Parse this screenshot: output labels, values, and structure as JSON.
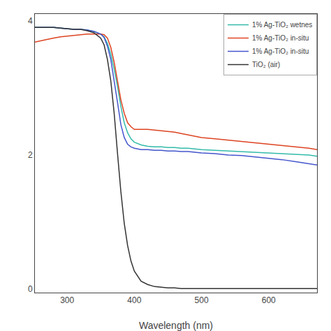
{
  "chart_data": {
    "type": "line",
    "xlabel": "Wavelength (nm)",
    "xlim": [
      252,
      672
    ],
    "ylim": [
      -0.05,
      4.1
    ],
    "xticks": [
      300,
      400,
      500,
      600
    ],
    "yticks": [
      0,
      2,
      4
    ],
    "grid": false,
    "legend": "upper right",
    "x": [
      252,
      260,
      270,
      280,
      290,
      300,
      310,
      320,
      330,
      340,
      350,
      355,
      360,
      365,
      370,
      375,
      380,
      385,
      390,
      395,
      400,
      410,
      420,
      430,
      440,
      450,
      460,
      470,
      480,
      490,
      500,
      520,
      540,
      560,
      580,
      600,
      620,
      640,
      660,
      672
    ],
    "series": [
      {
        "name": "1% Ag-TiO₂ wetnes",
        "color": "#33bbaa",
        "values": [
          3.9,
          3.9,
          3.9,
          3.9,
          3.89,
          3.88,
          3.87,
          3.87,
          3.86,
          3.84,
          3.8,
          3.76,
          3.66,
          3.5,
          3.28,
          3.02,
          2.72,
          2.48,
          2.33,
          2.24,
          2.19,
          2.15,
          2.13,
          2.12,
          2.12,
          2.11,
          2.11,
          2.1,
          2.1,
          2.09,
          2.08,
          2.07,
          2.06,
          2.05,
          2.04,
          2.03,
          2.02,
          2.01,
          2.0,
          1.98
        ]
      },
      {
        "name": "1% Ag-TiO₂ in-situ",
        "color": "#dd4422",
        "values": [
          3.68,
          3.7,
          3.72,
          3.74,
          3.76,
          3.77,
          3.78,
          3.79,
          3.8,
          3.8,
          3.8,
          3.79,
          3.74,
          3.6,
          3.38,
          3.1,
          2.82,
          2.62,
          2.48,
          2.42,
          2.38,
          2.38,
          2.38,
          2.37,
          2.36,
          2.35,
          2.34,
          2.32,
          2.3,
          2.28,
          2.26,
          2.24,
          2.22,
          2.2,
          2.18,
          2.16,
          2.14,
          2.12,
          2.1,
          2.08
        ]
      },
      {
        "name": "1% Ag-TiO₂ in-situ",
        "color": "#4455cc",
        "values": [
          3.9,
          3.9,
          3.9,
          3.9,
          3.89,
          3.88,
          3.87,
          3.87,
          3.86,
          3.84,
          3.8,
          3.75,
          3.62,
          3.42,
          3.12,
          2.78,
          2.45,
          2.26,
          2.16,
          2.12,
          2.1,
          2.08,
          2.08,
          2.07,
          2.07,
          2.06,
          2.06,
          2.05,
          2.05,
          2.04,
          2.03,
          2.02,
          2.0,
          1.99,
          1.97,
          1.95,
          1.93,
          1.9,
          1.87,
          1.85
        ]
      },
      {
        "name": "TiO₂ (air)",
        "color": "#333333",
        "values": [
          3.9,
          3.9,
          3.9,
          3.9,
          3.89,
          3.88,
          3.87,
          3.87,
          3.85,
          3.82,
          3.74,
          3.64,
          3.42,
          3.1,
          2.62,
          2.02,
          1.45,
          0.98,
          0.65,
          0.42,
          0.27,
          0.12,
          0.07,
          0.04,
          0.03,
          0.02,
          0.02,
          0.01,
          0.01,
          0.01,
          0.01,
          0.01,
          0.01,
          0.01,
          0.01,
          0.01,
          0.01,
          0.01,
          0.01,
          0.01
        ]
      }
    ]
  }
}
